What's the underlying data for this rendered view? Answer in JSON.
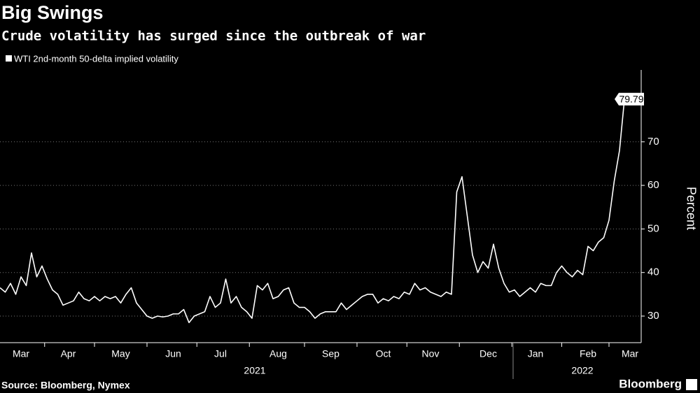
{
  "chart_data": {
    "type": "line",
    "title": "Big Swings",
    "subtitle": "Crude volatility has surged since the outbreak of war",
    "y_label": "Percent",
    "source": "Source: Bloomberg, Nymex",
    "brand": "Bloomberg",
    "grid": true,
    "ylim": [
      23.9,
      86.5
    ],
    "yticks": [
      30,
      40,
      50,
      60,
      70
    ],
    "years": [
      "2021",
      "2022"
    ],
    "categories": [
      null,
      null,
      null,
      null,
      "Mar",
      null,
      null,
      null,
      null,
      null,
      null,
      null,
      null,
      "Apr",
      null,
      null,
      null,
      null,
      null,
      null,
      null,
      null,
      null,
      "May",
      null,
      null,
      null,
      null,
      null,
      null,
      null,
      null,
      null,
      "Jun",
      null,
      null,
      null,
      null,
      null,
      null,
      null,
      null,
      "Jul",
      null,
      null,
      null,
      null,
      null,
      null,
      null,
      null,
      null,
      null,
      "Aug",
      null,
      null,
      null,
      null,
      null,
      null,
      null,
      null,
      null,
      "Sep",
      null,
      null,
      null,
      null,
      null,
      null,
      null,
      null,
      null,
      "Oct",
      null,
      null,
      null,
      null,
      null,
      null,
      null,
      null,
      "Nov",
      null,
      null,
      null,
      null,
      null,
      null,
      null,
      null,
      null,
      null,
      "Dec",
      null,
      null,
      null,
      null,
      null,
      null,
      null,
      null,
      "Jan",
      null,
      null,
      null,
      null,
      null,
      null,
      null,
      null,
      null,
      "Feb",
      null,
      null,
      null,
      null,
      null,
      null,
      null,
      "Mar"
    ],
    "series": [
      {
        "name": "WTI 2nd-month 50-delta implied volatility",
        "color": "#ffffff",
        "values": [
          36.5,
          35.5,
          37.5,
          35,
          39,
          37,
          44.5,
          39,
          41.5,
          38.5,
          36,
          35,
          32.5,
          33,
          33.5,
          35.5,
          34,
          33.5,
          34.5,
          33.5,
          34.5,
          34,
          34.5,
          33,
          35,
          36.5,
          33,
          31.5,
          30,
          29.5,
          30,
          29.8,
          30,
          30.5,
          30.5,
          31.5,
          28.5,
          30,
          30.5,
          31,
          34.5,
          32,
          33,
          38.5,
          33,
          34.5,
          32,
          31,
          29.5,
          37,
          36,
          37.5,
          34,
          34.5,
          36,
          36.5,
          33,
          32,
          32,
          31,
          29.5,
          30.5,
          31,
          31,
          31,
          33,
          31.5,
          32.5,
          33.5,
          34.5,
          35,
          35,
          33,
          34,
          33.5,
          34.5,
          34,
          35.5,
          35,
          37.5,
          36,
          36.5,
          35.5,
          35,
          34.5,
          35.5,
          35,
          58.5,
          62,
          53,
          44,
          40,
          42.5,
          41,
          46.5,
          41,
          37.5,
          35.5,
          36,
          34.5,
          35.5,
          36.5,
          35.5,
          37.5,
          37,
          37,
          40,
          41.5,
          40,
          39,
          40.5,
          39.5,
          46,
          45,
          47,
          48,
          52,
          61,
          68,
          80.5,
          79.79
        ]
      }
    ]
  }
}
